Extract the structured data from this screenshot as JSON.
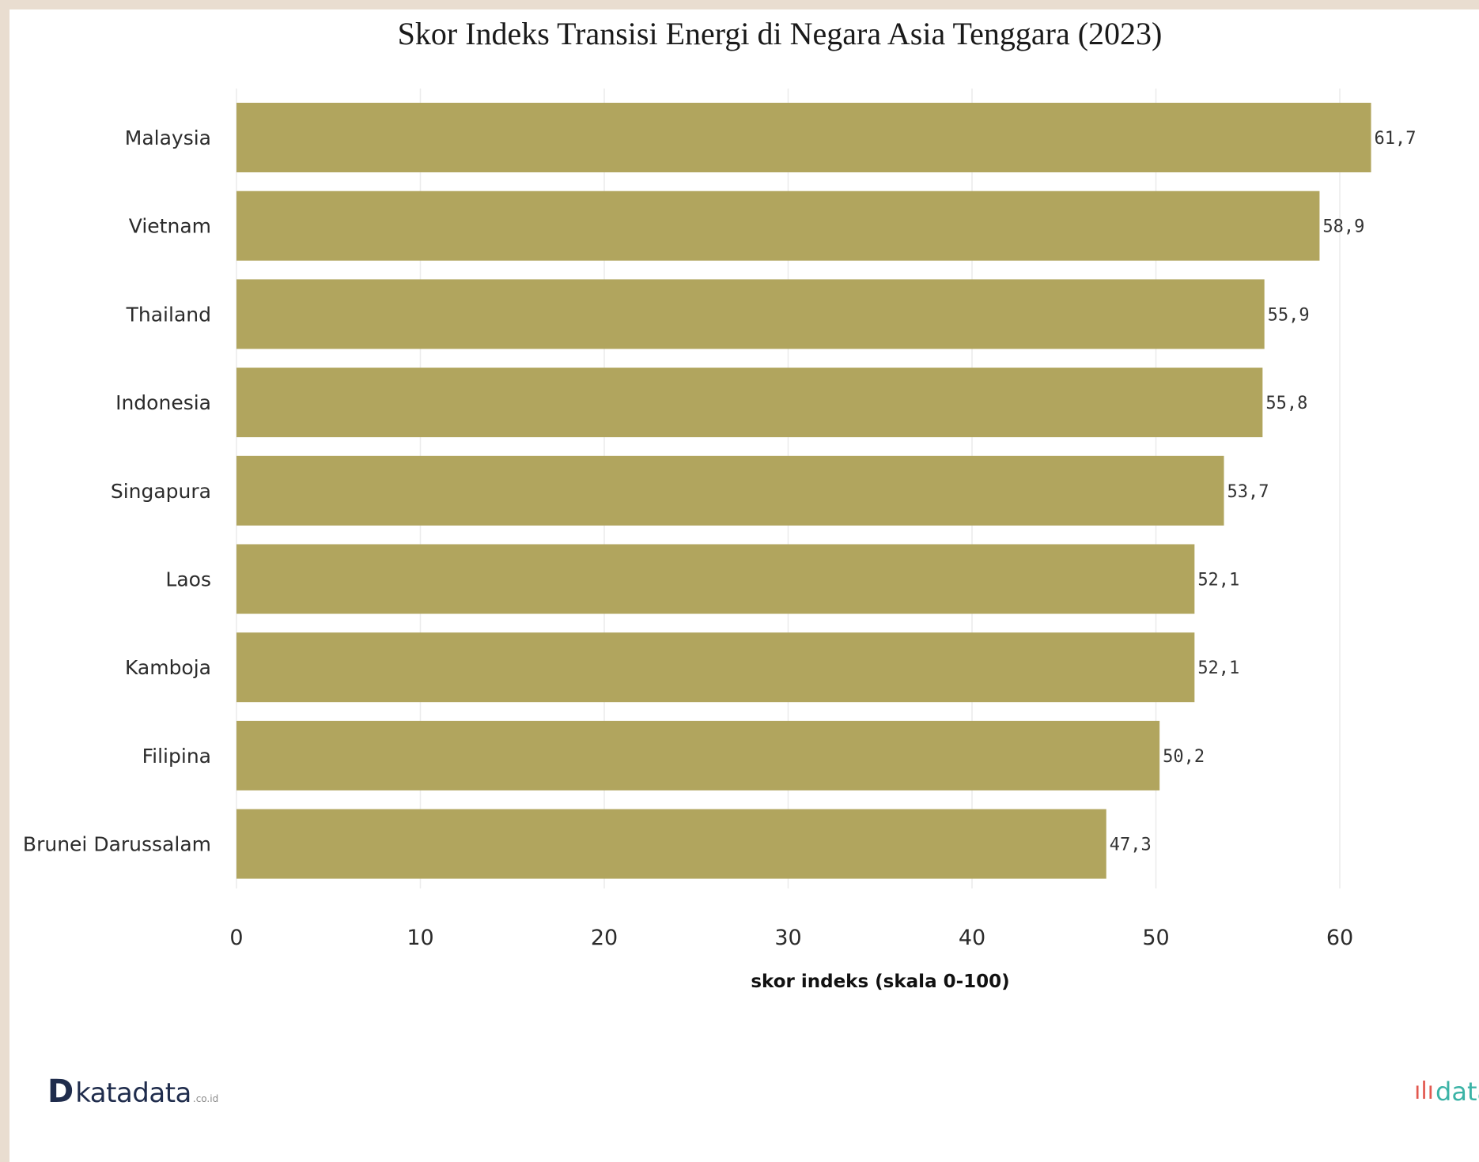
{
  "chart_data": {
    "type": "bar",
    "orientation": "horizontal",
    "title": "Skor Indeks Transisi Energi di Negara Asia Tenggara (2023)",
    "categories": [
      "Malaysia",
      "Vietnam",
      "Thailand",
      "Indonesia",
      "Singapura",
      "Laos",
      "Kamboja",
      "Filipina",
      "Brunei Darussalam"
    ],
    "values": [
      61.7,
      58.9,
      55.9,
      55.8,
      53.7,
      52.1,
      52.1,
      50.2,
      47.3
    ],
    "value_labels": [
      "61,7",
      "58,9",
      "55,9",
      "55,8",
      "53,7",
      "52,1",
      "52,1",
      "50,2",
      "47,3"
    ],
    "xlabel": "skor indeks (skala 0-100)",
    "ylabel": "",
    "xticks": [
      0,
      10,
      20,
      30,
      40,
      50,
      60
    ],
    "xlim": [
      0,
      65
    ],
    "grid": true,
    "bar_color": "#b1a55e"
  },
  "logos": {
    "left_mark": "D",
    "left_text": "katadata",
    "left_suffix": ".co.id",
    "right_text": "databoks"
  },
  "colors": {
    "background": "#e9ddd0",
    "card": "#ffffff",
    "bar": "#b1a55e"
  }
}
